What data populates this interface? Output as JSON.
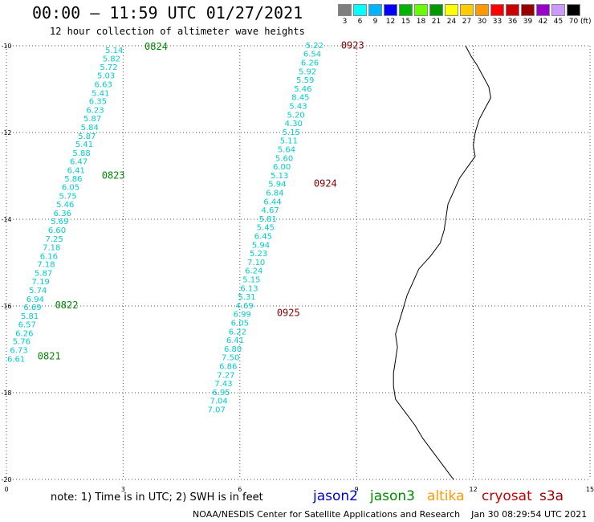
{
  "header": {
    "title": "00:00 – 11:59 UTC 01/27/2021",
    "subtitle": "12 hour collection of altimeter wave heights"
  },
  "color_scale": {
    "labels": [
      "3",
      "6",
      "9",
      "12",
      "15",
      "18",
      "21",
      "24",
      "27",
      "30",
      "33",
      "36",
      "39",
      "42",
      "45",
      "70"
    ],
    "colors": [
      "#7f7f7f",
      "#00ffff",
      "#00b4ff",
      "#0000ff",
      "#00b400",
      "#66ff00",
      "#009900",
      "#ffff00",
      "#ffcc00",
      "#ff9900",
      "#ff0000",
      "#cc0000",
      "#990000",
      "#9900cc",
      "#cc99ff",
      "#000000"
    ],
    "unit": "(ft)"
  },
  "map": {
    "x_ticks": [
      "0",
      "3",
      "6",
      "9",
      "12",
      "15"
    ],
    "y_ticks": [
      "-10",
      "-12",
      "-14",
      "-16",
      "-18",
      "-20"
    ],
    "x_range": [
      0,
      15
    ],
    "y_range": [
      -10,
      -20
    ],
    "grid": "dotted"
  },
  "tracks": [
    {
      "color": "#00cccc",
      "points": [
        {
          "lon": 3.0,
          "lat": -10.09,
          "v": "5.14"
        },
        {
          "lon": 2.93,
          "lat": -10.29,
          "v": "5.82"
        },
        {
          "lon": 2.86,
          "lat": -10.48,
          "v": "5.72"
        },
        {
          "lon": 2.79,
          "lat": -10.68,
          "v": "5.03"
        },
        {
          "lon": 2.72,
          "lat": -10.88,
          "v": "6.63"
        },
        {
          "lon": 2.65,
          "lat": -11.08,
          "v": "5.41"
        },
        {
          "lon": 2.58,
          "lat": -11.27,
          "v": "6.35"
        },
        {
          "lon": 2.51,
          "lat": -11.47,
          "v": "6.23"
        },
        {
          "lon": 2.44,
          "lat": -11.67,
          "v": "5.87"
        },
        {
          "lon": 2.37,
          "lat": -11.87,
          "v": "5.84"
        },
        {
          "lon": 2.3,
          "lat": -12.07,
          "v": "5.87"
        },
        {
          "lon": 2.23,
          "lat": -12.26,
          "v": "5.41"
        },
        {
          "lon": 2.16,
          "lat": -12.46,
          "v": "5.88"
        },
        {
          "lon": 2.09,
          "lat": -12.66,
          "v": "6.47"
        },
        {
          "lon": 2.02,
          "lat": -12.86,
          "v": "6.41"
        },
        {
          "lon": 1.95,
          "lat": -13.06,
          "v": "5.86"
        },
        {
          "lon": 1.88,
          "lat": -13.25,
          "v": "6.05"
        },
        {
          "lon": 1.81,
          "lat": -13.45,
          "v": "5.75"
        },
        {
          "lon": 1.74,
          "lat": -13.65,
          "v": "5.46"
        },
        {
          "lon": 1.67,
          "lat": -13.85,
          "v": "6.36"
        },
        {
          "lon": 1.6,
          "lat": -14.04,
          "v": "5.69"
        },
        {
          "lon": 1.53,
          "lat": -14.24,
          "v": "6.60"
        },
        {
          "lon": 1.46,
          "lat": -14.44,
          "v": "7.25"
        },
        {
          "lon": 1.39,
          "lat": -14.64,
          "v": "7.18"
        },
        {
          "lon": 1.32,
          "lat": -14.84,
          "v": "6.16"
        },
        {
          "lon": 1.25,
          "lat": -15.03,
          "v": "7.18"
        },
        {
          "lon": 1.18,
          "lat": -15.23,
          "v": "5.87"
        },
        {
          "lon": 1.11,
          "lat": -15.43,
          "v": "7.19"
        },
        {
          "lon": 1.04,
          "lat": -15.63,
          "v": "5.74"
        },
        {
          "lon": 0.97,
          "lat": -15.83,
          "v": "6.94"
        },
        {
          "lon": 0.9,
          "lat": -16.02,
          "v": "6.69"
        },
        {
          "lon": 0.83,
          "lat": -16.22,
          "v": "5.81"
        },
        {
          "lon": 0.76,
          "lat": -16.42,
          "v": "6.57"
        },
        {
          "lon": 0.69,
          "lat": -16.62,
          "v": "6.26"
        },
        {
          "lon": 0.62,
          "lat": -16.81,
          "v": "5.76"
        },
        {
          "lon": 0.55,
          "lat": -17.01,
          "v": "6.73"
        },
        {
          "lon": 0.48,
          "lat": -17.21,
          "v": "6.61"
        }
      ]
    },
    {
      "color": "#00cccc",
      "points": [
        {
          "lon": 8.15,
          "lat": -9.98,
          "v": "5.22"
        },
        {
          "lon": 8.09,
          "lat": -10.18,
          "v": "6.54"
        },
        {
          "lon": 8.03,
          "lat": -10.38,
          "v": "6.26"
        },
        {
          "lon": 7.97,
          "lat": -10.58,
          "v": "5.92"
        },
        {
          "lon": 7.91,
          "lat": -10.78,
          "v": "5.59"
        },
        {
          "lon": 7.85,
          "lat": -10.98,
          "v": "5.46"
        },
        {
          "lon": 7.79,
          "lat": -11.18,
          "v": "8.45"
        },
        {
          "lon": 7.73,
          "lat": -11.38,
          "v": "5.43"
        },
        {
          "lon": 7.67,
          "lat": -11.58,
          "v": "5.20"
        },
        {
          "lon": 7.61,
          "lat": -11.78,
          "v": "4.30"
        },
        {
          "lon": 7.55,
          "lat": -11.98,
          "v": "5.15"
        },
        {
          "lon": 7.49,
          "lat": -12.18,
          "v": "5.11"
        },
        {
          "lon": 7.43,
          "lat": -12.38,
          "v": "5.64"
        },
        {
          "lon": 7.37,
          "lat": -12.58,
          "v": "5.60"
        },
        {
          "lon": 7.31,
          "lat": -12.78,
          "v": "6.00"
        },
        {
          "lon": 7.25,
          "lat": -12.98,
          "v": "5.13"
        },
        {
          "lon": 7.19,
          "lat": -13.18,
          "v": "5.94"
        },
        {
          "lon": 7.13,
          "lat": -13.38,
          "v": "6.84"
        },
        {
          "lon": 7.07,
          "lat": -13.58,
          "v": "6.44"
        },
        {
          "lon": 7.01,
          "lat": -13.78,
          "v": "4.67"
        },
        {
          "lon": 6.95,
          "lat": -13.98,
          "v": "5.81"
        },
        {
          "lon": 6.89,
          "lat": -14.18,
          "v": "5.45"
        },
        {
          "lon": 6.83,
          "lat": -14.38,
          "v": "6.45"
        },
        {
          "lon": 6.77,
          "lat": -14.58,
          "v": "5.94"
        },
        {
          "lon": 6.71,
          "lat": -14.78,
          "v": "5.23"
        },
        {
          "lon": 6.65,
          "lat": -14.98,
          "v": "7.10"
        },
        {
          "lon": 6.59,
          "lat": -15.18,
          "v": "6.24"
        },
        {
          "lon": 6.53,
          "lat": -15.38,
          "v": "5.15"
        },
        {
          "lon": 6.47,
          "lat": -15.58,
          "v": "6.13"
        },
        {
          "lon": 6.41,
          "lat": -15.78,
          "v": "5.31"
        },
        {
          "lon": 6.35,
          "lat": -15.98,
          "v": "4.69"
        },
        {
          "lon": 6.29,
          "lat": -16.18,
          "v": "6.99"
        },
        {
          "lon": 6.23,
          "lat": -16.38,
          "v": "6.05"
        },
        {
          "lon": 6.17,
          "lat": -16.58,
          "v": "6.22"
        },
        {
          "lon": 6.11,
          "lat": -16.78,
          "v": "6.41"
        },
        {
          "lon": 6.05,
          "lat": -16.98,
          "v": "6.80"
        },
        {
          "lon": 5.99,
          "lat": -17.18,
          "v": "7.50"
        },
        {
          "lon": 5.93,
          "lat": -17.38,
          "v": "6.86"
        },
        {
          "lon": 5.87,
          "lat": -17.58,
          "v": "7.27"
        },
        {
          "lon": 5.81,
          "lat": -17.78,
          "v": "7.43"
        },
        {
          "lon": 5.75,
          "lat": -17.98,
          "v": "6.95"
        },
        {
          "lon": 5.69,
          "lat": -18.18,
          "v": "7.04"
        },
        {
          "lon": 5.63,
          "lat": -18.38,
          "v": "7.07"
        }
      ]
    }
  ],
  "time_labels": [
    {
      "lon": 3.55,
      "lat": -10.02,
      "text": "0824",
      "color": "#008800"
    },
    {
      "lon": 2.45,
      "lat": -12.99,
      "text": "0823",
      "color": "#008800"
    },
    {
      "lon": 1.25,
      "lat": -15.98,
      "text": "0822",
      "color": "#008800"
    },
    {
      "lon": 0.8,
      "lat": -17.16,
      "text": "0821",
      "color": "#008800"
    },
    {
      "lon": 8.6,
      "lat": -9.99,
      "text": "0923",
      "color": "#880000"
    },
    {
      "lon": 7.9,
      "lat": -13.18,
      "text": "0924",
      "color": "#880000"
    },
    {
      "lon": 6.95,
      "lat": -16.16,
      "text": "0925",
      "color": "#880000"
    }
  ],
  "coastline": [
    [
      11.8,
      -10.0
    ],
    [
      11.95,
      -10.25
    ],
    [
      12.1,
      -10.45
    ],
    [
      12.25,
      -10.7
    ],
    [
      12.4,
      -10.95
    ],
    [
      12.45,
      -11.2
    ],
    [
      12.3,
      -11.45
    ],
    [
      12.15,
      -11.7
    ],
    [
      12.05,
      -12.0
    ],
    [
      12.0,
      -12.3
    ],
    [
      12.05,
      -12.55
    ],
    [
      11.85,
      -12.8
    ],
    [
      11.65,
      -13.05
    ],
    [
      11.5,
      -13.35
    ],
    [
      11.35,
      -13.65
    ],
    [
      11.3,
      -13.95
    ],
    [
      11.25,
      -14.25
    ],
    [
      11.15,
      -14.55
    ],
    [
      10.9,
      -14.85
    ],
    [
      10.6,
      -15.15
    ],
    [
      10.45,
      -15.45
    ],
    [
      10.3,
      -15.75
    ],
    [
      10.2,
      -16.05
    ],
    [
      10.1,
      -16.35
    ],
    [
      10.0,
      -16.65
    ],
    [
      10.05,
      -16.95
    ],
    [
      10.0,
      -17.25
    ],
    [
      9.95,
      -17.55
    ],
    [
      9.95,
      -17.85
    ],
    [
      10.0,
      -18.15
    ],
    [
      10.25,
      -18.45
    ],
    [
      10.5,
      -18.75
    ],
    [
      10.7,
      -19.05
    ],
    [
      10.95,
      -19.35
    ],
    [
      11.2,
      -19.65
    ],
    [
      11.45,
      -19.95
    ],
    [
      11.5,
      -20.0
    ]
  ],
  "note": "note: 1) Time is in UTC; 2) SWH is in feet",
  "satellites": [
    {
      "name": "jason2",
      "color": "#0000cc"
    },
    {
      "name": "jason3",
      "color": "#008800"
    },
    {
      "name": "altika",
      "color": "#ff9900"
    },
    {
      "name": "cryosat",
      "color": "#cc0000"
    },
    {
      "name": "s3a",
      "color": "#990000"
    }
  ],
  "credit": "NOAA/NESDIS Center for Satellite Applications and Research    Jan 30 08:29:54 UTC 2021"
}
